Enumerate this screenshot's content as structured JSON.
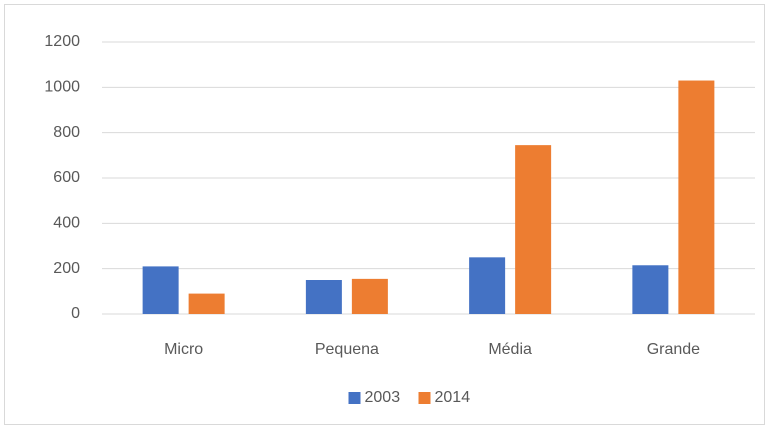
{
  "chart_data": {
    "type": "bar",
    "categories": [
      "Micro",
      "Pequena",
      "Média",
      "Grande"
    ],
    "series": [
      {
        "name": "2003",
        "color": "#4472c4",
        "values": [
          210,
          150,
          250,
          215
        ]
      },
      {
        "name": "2014",
        "color": "#ed7d31",
        "values": [
          90,
          155,
          745,
          1030
        ]
      }
    ],
    "ylim": [
      0,
      1200
    ],
    "yticks": [
      0,
      200,
      400,
      600,
      800,
      1000,
      1200
    ],
    "grid": true,
    "legend": "bottom"
  }
}
